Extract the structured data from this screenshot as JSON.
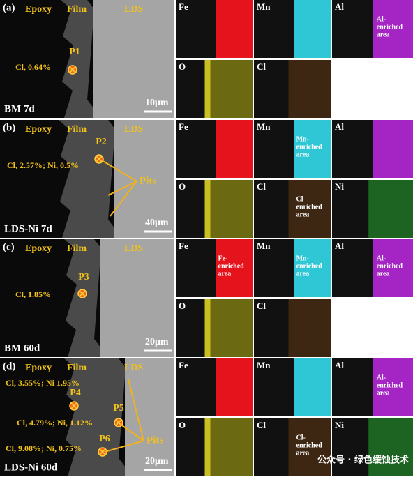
{
  "panels": [
    {
      "label": "(a)",
      "epoxy": "Epoxy",
      "film": "Film",
      "lds": "LDS",
      "sample": "BM 7d",
      "scale": "10μm",
      "points": [
        {
          "name": "P1",
          "note": "Cl, 0.64%"
        }
      ],
      "maps": [
        {
          "element": "Fe"
        },
        {
          "element": "Mn"
        },
        {
          "element": "Al",
          "note": [
            "Al-",
            "enriched",
            "area"
          ]
        },
        {
          "element": "O"
        },
        {
          "element": "Cl"
        }
      ]
    },
    {
      "label": "(b)",
      "epoxy": "Epoxy",
      "film": "Film",
      "lds": "LDS",
      "sample": "LDS-Ni 7d",
      "scale": "40μm",
      "pits": "Pits",
      "points": [
        {
          "name": "P2",
          "note": "Cl, 2.57%; Ni, 0.5%"
        }
      ],
      "maps": [
        {
          "element": "Fe"
        },
        {
          "element": "Mn",
          "note": [
            "Mn-",
            "enriched",
            "area"
          ]
        },
        {
          "element": "Al"
        },
        {
          "element": "O"
        },
        {
          "element": "Cl",
          "note": [
            "Cl",
            "enriched",
            "area"
          ]
        },
        {
          "element": "Ni"
        }
      ]
    },
    {
      "label": "(c)",
      "epoxy": "Epoxy",
      "film": "Film",
      "lds": "LDS",
      "sample": "BM 60d",
      "scale": "20μm",
      "points": [
        {
          "name": "P3",
          "note": "Cl, 1.85%"
        }
      ],
      "maps": [
        {
          "element": "Fe",
          "note": [
            "Fe-",
            "enriched",
            "area"
          ]
        },
        {
          "element": "Mn",
          "note": [
            "Mn-",
            "enriched",
            "area"
          ]
        },
        {
          "element": "Al",
          "note": [
            "Al-",
            "enriched",
            "area"
          ]
        },
        {
          "element": "O"
        },
        {
          "element": "Cl"
        }
      ]
    },
    {
      "label": "(d)",
      "epoxy": "Epoxy",
      "film": "Film",
      "lds": "LDS",
      "sample": "LDS-Ni 60d",
      "scale": "20μm",
      "pits": "Pits",
      "points": [
        {
          "name": "P4",
          "note": "Cl, 3.55%; Ni 1.95%"
        },
        {
          "name": "P5",
          "note": "Cl, 4.79%; Ni, 1.12%"
        },
        {
          "name": "P6",
          "note": "Cl, 9.08%; Ni, 0.75%"
        }
      ],
      "maps": [
        {
          "element": "Fe"
        },
        {
          "element": "Mn"
        },
        {
          "element": "Al",
          "note": [
            "Al-",
            "enriched",
            "area"
          ]
        },
        {
          "element": "O"
        },
        {
          "element": "Cl",
          "note": [
            "Cl-",
            "enriched",
            "area"
          ]
        },
        {
          "element": "Ni"
        }
      ]
    }
  ],
  "watermark": "公众号 · 绿色缓蚀技术"
}
